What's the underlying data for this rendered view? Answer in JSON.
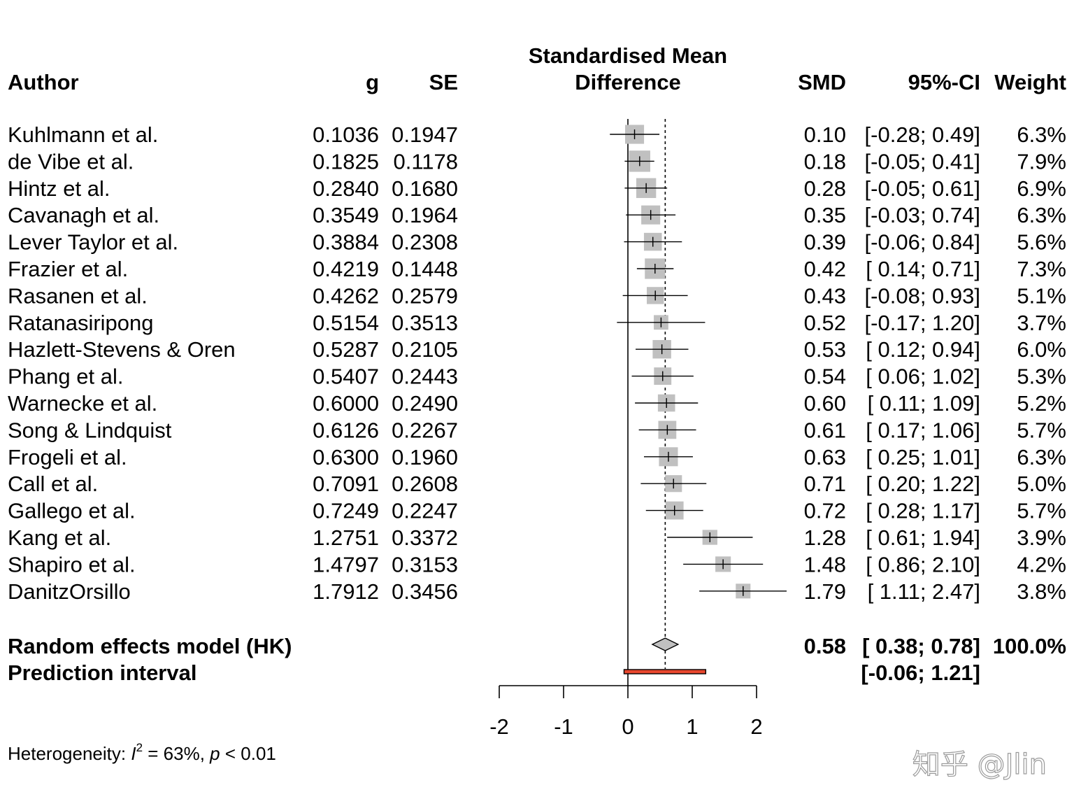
{
  "header": {
    "author": "Author",
    "g": "g",
    "se": "SE",
    "plot_title_line1": "Standardised Mean",
    "plot_title_line2": "Difference",
    "smd": "SMD",
    "ci": "95%-CI",
    "weight": "Weight"
  },
  "chart_data": {
    "type": "forest",
    "xlim": [
      -2,
      2
    ],
    "x_ticks": [
      "-2",
      "-1",
      "0",
      "1",
      "2"
    ],
    "null_line": 0,
    "pooled_line": 0.58,
    "studies": [
      {
        "author": "Kuhlmann et al.",
        "g": "0.1036",
        "se": "0.1947",
        "smd_text": "0.10",
        "ci_text": "[-0.28; 0.49]",
        "weight_text": "6.3%",
        "smd": 0.1036,
        "lower": -0.28,
        "upper": 0.49,
        "weight": 6.3
      },
      {
        "author": "de Vibe et al.",
        "g": "0.1825",
        "se": "0.1178",
        "smd_text": "0.18",
        "ci_text": "[-0.05; 0.41]",
        "weight_text": "7.9%",
        "smd": 0.1825,
        "lower": -0.05,
        "upper": 0.41,
        "weight": 7.9
      },
      {
        "author": "Hintz et al.",
        "g": "0.2840",
        "se": "0.1680",
        "smd_text": "0.28",
        "ci_text": "[-0.05; 0.61]",
        "weight_text": "6.9%",
        "smd": 0.284,
        "lower": -0.05,
        "upper": 0.61,
        "weight": 6.9
      },
      {
        "author": "Cavanagh et al.",
        "g": "0.3549",
        "se": "0.1964",
        "smd_text": "0.35",
        "ci_text": "[-0.03; 0.74]",
        "weight_text": "6.3%",
        "smd": 0.3549,
        "lower": -0.03,
        "upper": 0.74,
        "weight": 6.3
      },
      {
        "author": "Lever Taylor et al.",
        "g": "0.3884",
        "se": "0.2308",
        "smd_text": "0.39",
        "ci_text": "[-0.06; 0.84]",
        "weight_text": "5.6%",
        "smd": 0.3884,
        "lower": -0.06,
        "upper": 0.84,
        "weight": 5.6
      },
      {
        "author": "Frazier et al.",
        "g": "0.4219",
        "se": "0.1448",
        "smd_text": "0.42",
        "ci_text": "[ 0.14; 0.71]",
        "weight_text": "7.3%",
        "smd": 0.4219,
        "lower": 0.14,
        "upper": 0.71,
        "weight": 7.3
      },
      {
        "author": "Rasanen et al.",
        "g": "0.4262",
        "se": "0.2579",
        "smd_text": "0.43",
        "ci_text": "[-0.08; 0.93]",
        "weight_text": "5.1%",
        "smd": 0.4262,
        "lower": -0.08,
        "upper": 0.93,
        "weight": 5.1
      },
      {
        "author": "Ratanasiripong",
        "g": "0.5154",
        "se": "0.3513",
        "smd_text": "0.52",
        "ci_text": "[-0.17; 1.20]",
        "weight_text": "3.7%",
        "smd": 0.5154,
        "lower": -0.17,
        "upper": 1.2,
        "weight": 3.7
      },
      {
        "author": "Hazlett-Stevens & Oren",
        "g": "0.5287",
        "se": "0.2105",
        "smd_text": "0.53",
        "ci_text": "[ 0.12; 0.94]",
        "weight_text": "6.0%",
        "smd": 0.5287,
        "lower": 0.12,
        "upper": 0.94,
        "weight": 6.0
      },
      {
        "author": "Phang et al.",
        "g": "0.5407",
        "se": "0.2443",
        "smd_text": "0.54",
        "ci_text": "[ 0.06; 1.02]",
        "weight_text": "5.3%",
        "smd": 0.5407,
        "lower": 0.06,
        "upper": 1.02,
        "weight": 5.3
      },
      {
        "author": "Warnecke et al.",
        "g": "0.6000",
        "se": "0.2490",
        "smd_text": "0.60",
        "ci_text": "[ 0.11; 1.09]",
        "weight_text": "5.2%",
        "smd": 0.6,
        "lower": 0.11,
        "upper": 1.09,
        "weight": 5.2
      },
      {
        "author": "Song & Lindquist",
        "g": "0.6126",
        "se": "0.2267",
        "smd_text": "0.61",
        "ci_text": "[ 0.17; 1.06]",
        "weight_text": "5.7%",
        "smd": 0.6126,
        "lower": 0.17,
        "upper": 1.06,
        "weight": 5.7
      },
      {
        "author": "Frogeli et al.",
        "g": "0.6300",
        "se": "0.1960",
        "smd_text": "0.63",
        "ci_text": "[ 0.25; 1.01]",
        "weight_text": "6.3%",
        "smd": 0.63,
        "lower": 0.25,
        "upper": 1.01,
        "weight": 6.3
      },
      {
        "author": "Call et al.",
        "g": "0.7091",
        "se": "0.2608",
        "smd_text": "0.71",
        "ci_text": "[ 0.20; 1.22]",
        "weight_text": "5.0%",
        "smd": 0.7091,
        "lower": 0.2,
        "upper": 1.22,
        "weight": 5.0
      },
      {
        "author": "Gallego et al.",
        "g": "0.7249",
        "se": "0.2247",
        "smd_text": "0.72",
        "ci_text": "[ 0.28; 1.17]",
        "weight_text": "5.7%",
        "smd": 0.7249,
        "lower": 0.28,
        "upper": 1.17,
        "weight": 5.7
      },
      {
        "author": "Kang et al.",
        "g": "1.2751",
        "se": "0.3372",
        "smd_text": "1.28",
        "ci_text": "[ 0.61; 1.94]",
        "weight_text": "3.9%",
        "smd": 1.2751,
        "lower": 0.61,
        "upper": 1.94,
        "weight": 3.9
      },
      {
        "author": "Shapiro et al.",
        "g": "1.4797",
        "se": "0.3153",
        "smd_text": "1.48",
        "ci_text": "[ 0.86; 2.10]",
        "weight_text": "4.2%",
        "smd": 1.4797,
        "lower": 0.86,
        "upper": 2.1,
        "weight": 4.2
      },
      {
        "author": "DanitzOrsillo",
        "g": "1.7912",
        "se": "0.3456",
        "smd_text": "1.79",
        "ci_text": "[ 1.11; 2.47]",
        "weight_text": "3.8%",
        "smd": 1.7912,
        "lower": 1.11,
        "upper": 2.47,
        "weight": 3.8
      }
    ],
    "pooled": {
      "label": "Random effects model (HK)",
      "smd": 0.58,
      "lower": 0.38,
      "upper": 0.78,
      "smd_text": "0.58",
      "ci_text": "[ 0.38; 0.78]",
      "weight_text": "100.0%"
    },
    "prediction": {
      "label": "Prediction interval",
      "lower": -0.06,
      "upper": 1.21,
      "ci_text": "[-0.06; 1.21]"
    },
    "heterogeneity": {
      "prefix": "Heterogeneity: ",
      "i_symbol": "I",
      "superscript": "2",
      "value": " = 63%, ",
      "p_symbol": "p",
      "p_value": " < 0.01"
    },
    "colors": {
      "square": "#c0c0c0",
      "diamond": "#c0c0c0",
      "prediction": "#e8472e"
    }
  },
  "watermark": "知乎 @Jlin"
}
